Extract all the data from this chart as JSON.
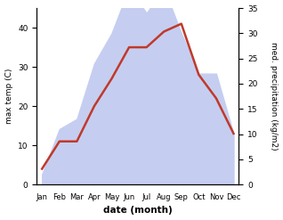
{
  "months": [
    "Jan",
    "Feb",
    "Mar",
    "Apr",
    "May",
    "Jun",
    "Jul",
    "Aug",
    "Sep",
    "Oct",
    "Nov",
    "Dec"
  ],
  "temp": [
    4,
    11,
    11,
    20,
    27,
    35,
    35,
    39,
    41,
    28,
    22,
    13
  ],
  "precip": [
    2,
    11,
    13,
    24,
    30,
    39,
    34,
    39,
    30,
    22,
    22,
    10
  ],
  "temp_color": "#c0392b",
  "precip_fill_color": "#c5cef0",
  "left_ylabel": "max temp (C)",
  "right_ylabel": "med. precipitation (kg/m2)",
  "xlabel": "date (month)",
  "left_ylim": [
    0,
    45
  ],
  "right_ylim": [
    0,
    35
  ],
  "left_yticks": [
    0,
    10,
    20,
    30,
    40
  ],
  "right_yticks": [
    0,
    5,
    10,
    15,
    20,
    25,
    30,
    35
  ]
}
